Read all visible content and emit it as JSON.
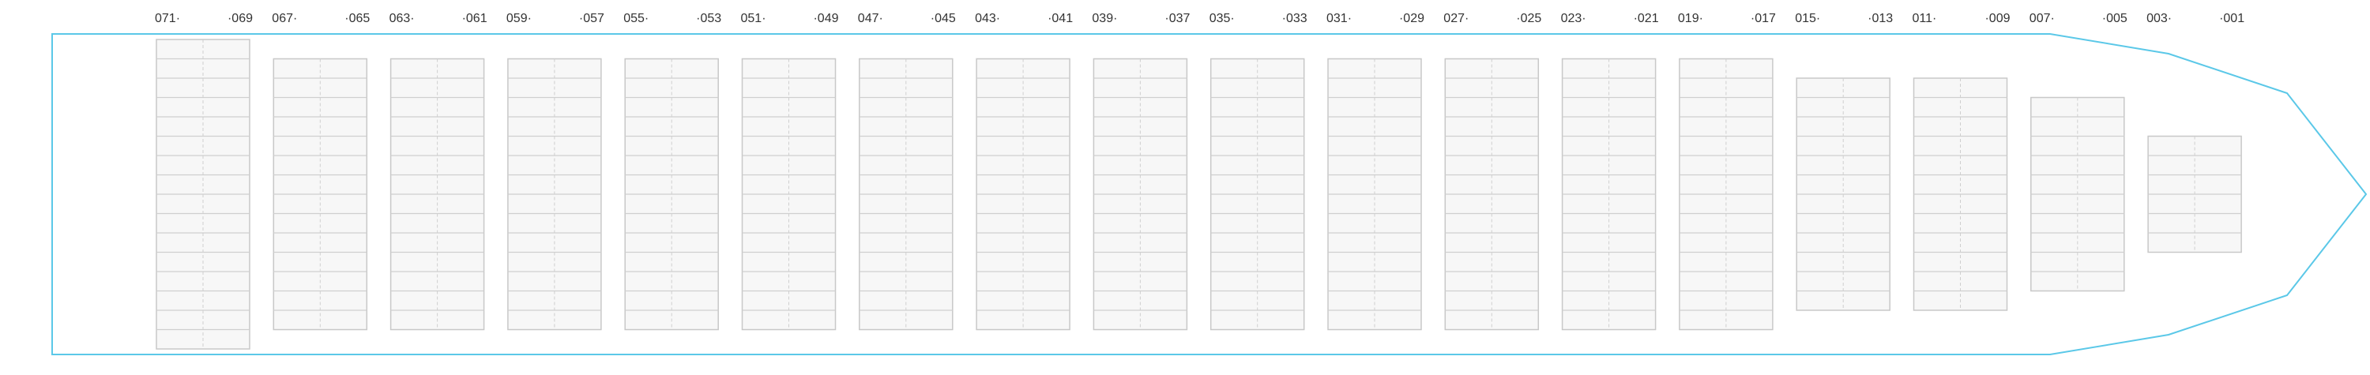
{
  "bay_plan": {
    "hull_color": "#5bc8e8",
    "bays": [
      {
        "left_label": "071·",
        "right_label": "·069",
        "tiers": 16
      },
      {
        "left_label": "067·",
        "right_label": "·065",
        "tiers": 14
      },
      {
        "left_label": "063·",
        "right_label": "·061",
        "tiers": 14
      },
      {
        "left_label": "059·",
        "right_label": "·057",
        "tiers": 14
      },
      {
        "left_label": "055·",
        "right_label": "·053",
        "tiers": 14
      },
      {
        "left_label": "051·",
        "right_label": "·049",
        "tiers": 14
      },
      {
        "left_label": "047·",
        "right_label": "·045",
        "tiers": 14
      },
      {
        "left_label": "043·",
        "right_label": "·041",
        "tiers": 14
      },
      {
        "left_label": "039·",
        "right_label": "·037",
        "tiers": 14
      },
      {
        "left_label": "035·",
        "right_label": "·033",
        "tiers": 14
      },
      {
        "left_label": "031·",
        "right_label": "·029",
        "tiers": 14
      },
      {
        "left_label": "027·",
        "right_label": "·025",
        "tiers": 14
      },
      {
        "left_label": "023·",
        "right_label": "·021",
        "tiers": 14
      },
      {
        "left_label": "019·",
        "right_label": "·017",
        "tiers": 14
      },
      {
        "left_label": "015·",
        "right_label": "·013",
        "tiers": 12
      },
      {
        "left_label": "011·",
        "right_label": "·009",
        "tiers": 12
      },
      {
        "left_label": "007·",
        "right_label": "·005",
        "tiers": 10
      },
      {
        "left_label": "003·",
        "right_label": "·001",
        "tiers": 6
      }
    ]
  }
}
